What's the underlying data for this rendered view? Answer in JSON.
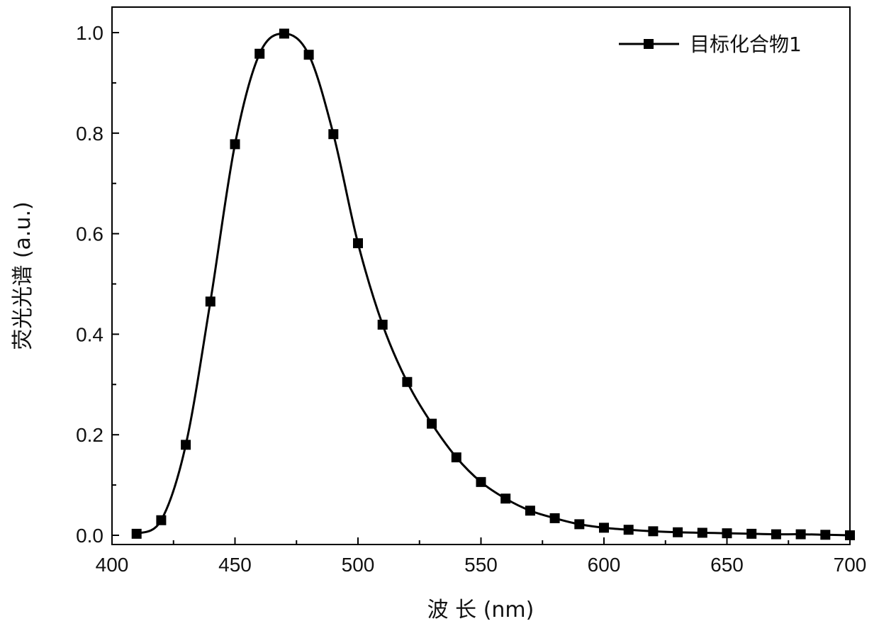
{
  "chart_data": {
    "type": "line",
    "xlabel": "波 长 (nm)",
    "ylabel": "荧光光谱 (a.u.)",
    "xlim": [
      400,
      700
    ],
    "ylim": [
      0.0,
      1.0
    ],
    "x_ticks": [
      400,
      450,
      500,
      550,
      600,
      650,
      700
    ],
    "x_tick_labels": [
      "400",
      "450",
      "500",
      "550",
      "600",
      "650",
      "700"
    ],
    "y_ticks": [
      0.0,
      0.2,
      0.4,
      0.6,
      0.8,
      1.0
    ],
    "y_tick_labels": [
      "0.0",
      "0.2",
      "0.4",
      "0.6",
      "0.8",
      "1.0"
    ],
    "grid": false,
    "legend_position": "top-right",
    "series": [
      {
        "name": "目标化合物1",
        "color": "#000000",
        "marker": "square",
        "x": [
          410,
          420,
          430,
          440,
          450,
          460,
          470,
          480,
          490,
          500,
          510,
          520,
          530,
          540,
          550,
          560,
          570,
          580,
          590,
          600,
          610,
          620,
          630,
          640,
          650,
          660,
          670,
          680,
          690,
          700
        ],
        "y": [
          0.003,
          0.03,
          0.18,
          0.465,
          0.778,
          0.958,
          0.998,
          0.956,
          0.798,
          0.581,
          0.419,
          0.305,
          0.222,
          0.155,
          0.106,
          0.073,
          0.049,
          0.034,
          0.022,
          0.015,
          0.011,
          0.008,
          0.006,
          0.005,
          0.004,
          0.003,
          0.002,
          0.002,
          0.001,
          0.0
        ]
      }
    ]
  }
}
